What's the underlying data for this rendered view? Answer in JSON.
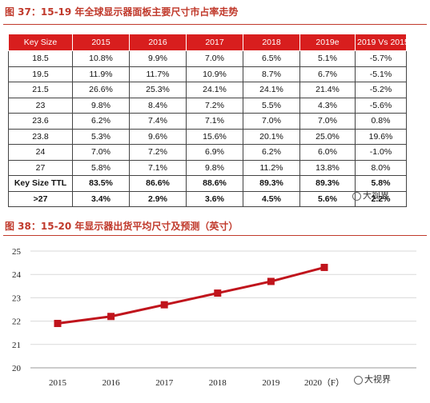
{
  "figures": {
    "fig37_title": "图 37：15-19 年全球显示器面板主要尺寸市占率走势",
    "fig38_title": "图 38：15-20 年显示器出货平均尺寸及预测（英寸）"
  },
  "table": {
    "headers": [
      "Key Size",
      "2015",
      "2016",
      "2017",
      "2018",
      "2019e",
      "2019 Vs 2015"
    ],
    "rows": [
      [
        "18.5",
        "10.8%",
        "9.9%",
        "7.0%",
        "6.5%",
        "5.1%",
        "-5.7%"
      ],
      [
        "19.5",
        "11.9%",
        "11.7%",
        "10.9%",
        "8.7%",
        "6.7%",
        "-5.1%"
      ],
      [
        "21.5",
        "26.6%",
        "25.3%",
        "24.1%",
        "24.1%",
        "21.4%",
        "-5.2%"
      ],
      [
        "23",
        "9.8%",
        "8.4%",
        "7.2%",
        "5.5%",
        "4.3%",
        "-5.6%"
      ],
      [
        "23.6",
        "6.2%",
        "7.4%",
        "7.1%",
        "7.0%",
        "7.0%",
        "0.8%"
      ],
      [
        "23.8",
        "5.3%",
        "9.6%",
        "15.6%",
        "20.1%",
        "25.0%",
        "19.6%"
      ],
      [
        "24",
        "7.0%",
        "7.2%",
        "6.9%",
        "6.2%",
        "6.0%",
        "-1.0%"
      ],
      [
        "27",
        "5.8%",
        "7.1%",
        "9.8%",
        "11.2%",
        "13.8%",
        "8.0%"
      ],
      [
        "Key Size TTL",
        "83.5%",
        "86.6%",
        "88.6%",
        "89.3%",
        "89.3%",
        "5.8%"
      ],
      [
        ">27",
        "3.4%",
        "2.9%",
        "3.6%",
        "4.5%",
        "5.6%",
        "2.2%"
      ]
    ]
  },
  "watermark": {
    "text": "大视界"
  },
  "chart_data": {
    "type": "line",
    "title": "图 38：15-20 年显示器出货平均尺寸及预测（英寸）",
    "x": [
      "2015",
      "2016",
      "2017",
      "2018",
      "2019",
      "2020（F）"
    ],
    "series": [
      {
        "values": [
          21.9,
          22.2,
          22.7,
          23.2,
          23.7,
          24.3
        ]
      }
    ],
    "yticks": [
      "20",
      "21",
      "22",
      "23",
      "24",
      "25"
    ],
    "ylim": [
      20,
      25
    ],
    "grid": "horizontal",
    "legend": "none",
    "colors": {
      "line": "#c0141c",
      "grid": "#d9d9d9",
      "header": "#d81e1e",
      "title": "#c0392b"
    }
  }
}
